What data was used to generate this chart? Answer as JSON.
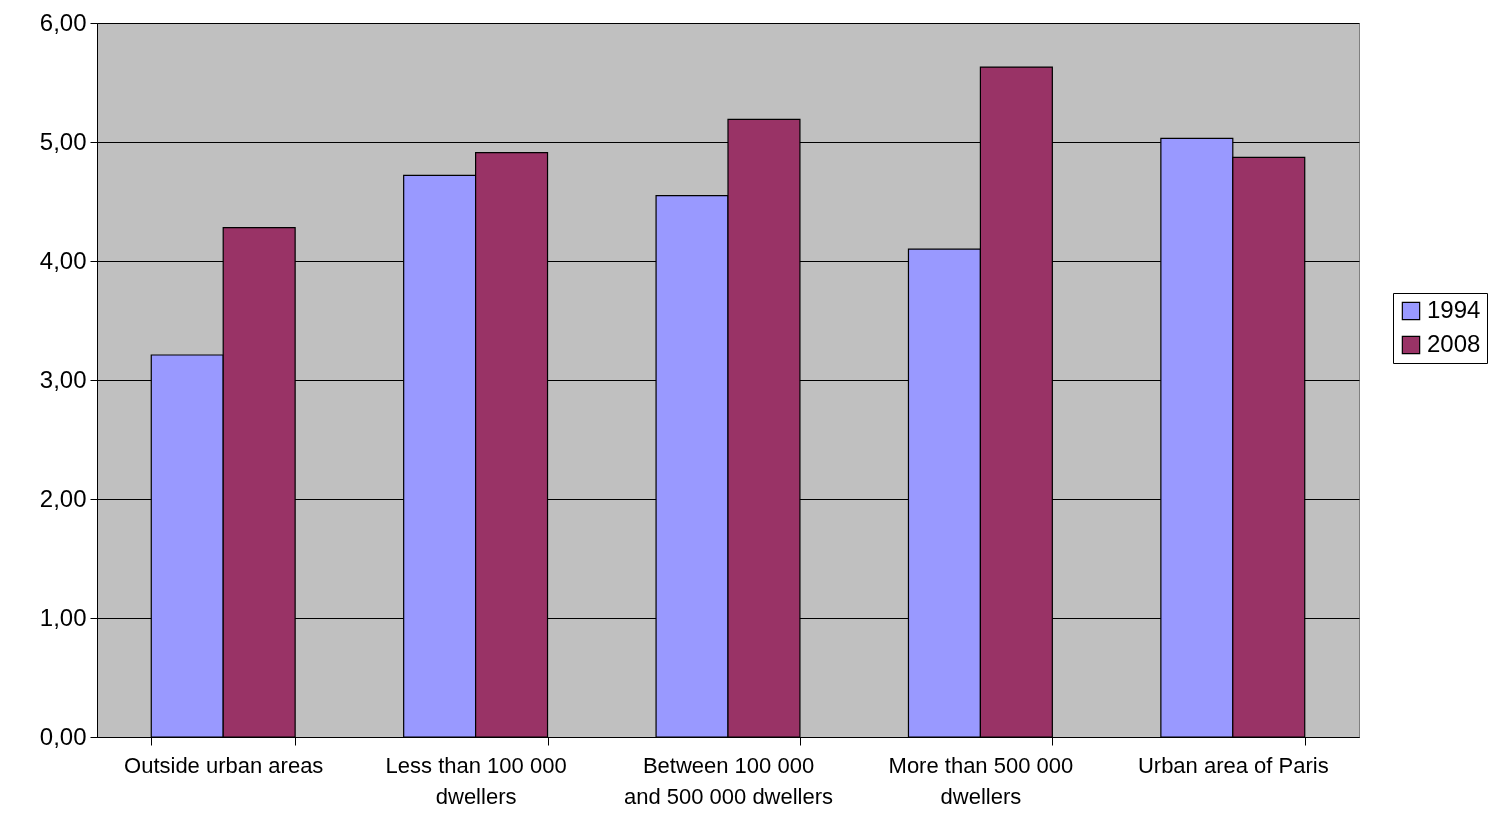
{
  "chart_data": {
    "type": "bar",
    "categories": [
      "Outside urban areas",
      "Less than 100 000 dwellers",
      "Between 100 000 and 500 000 dwellers",
      "More than 500 000 dwellers",
      "Urban area of Paris"
    ],
    "series": [
      {
        "name": "1994",
        "color": "#9999ff",
        "values": [
          3.21,
          4.72,
          4.55,
          4.1,
          5.03
        ]
      },
      {
        "name": "2008",
        "color": "#993366",
        "values": [
          4.28,
          4.91,
          5.19,
          5.63,
          4.87
        ]
      }
    ],
    "ylim": [
      0,
      6
    ],
    "yticks": [
      {
        "value": 0,
        "label": "0,00"
      },
      {
        "value": 1,
        "label": "1,00"
      },
      {
        "value": 2,
        "label": "2,00"
      },
      {
        "value": 3,
        "label": "3,00"
      },
      {
        "value": 4,
        "label": "4,00"
      },
      {
        "value": 5,
        "label": "5,00"
      },
      {
        "value": 6,
        "label": "6,00"
      }
    ],
    "grid": "y",
    "legend": "right"
  }
}
